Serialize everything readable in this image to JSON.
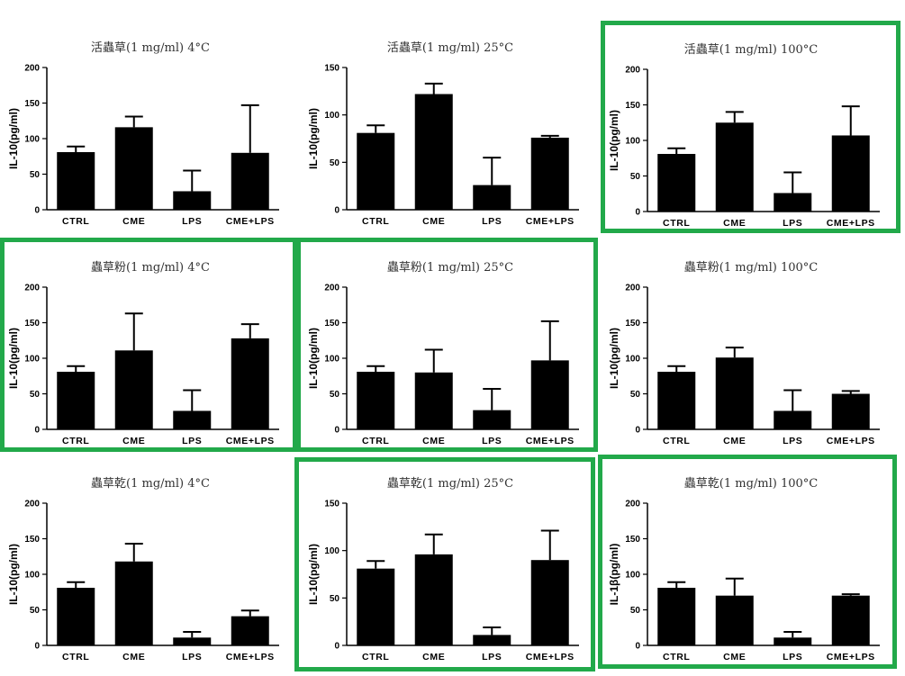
{
  "style": {
    "highlight_color": "#22a94a",
    "bar_color": "#000000"
  },
  "chart_data": [
    {
      "type": "bar",
      "title": "活蟲草(1 mg/ml) 4°C",
      "ylabel": "IL-10(pg/ml)",
      "ylim": [
        0,
        200
      ],
      "yticks": [
        0,
        50,
        100,
        150,
        200
      ],
      "highlighted": false,
      "categories": [
        "CTRL",
        "CME",
        "LPS",
        "CME+LPS"
      ],
      "values": [
        81,
        116,
        26,
        80
      ],
      "errors": [
        8,
        15,
        29,
        67
      ]
    },
    {
      "type": "bar",
      "title": "活蟲草(1 mg/ml) 25°C",
      "ylabel": "IL-10(pg/ml)",
      "ylim": [
        0,
        150
      ],
      "yticks": [
        0,
        50,
        100,
        150
      ],
      "highlighted": false,
      "categories": [
        "CTRL",
        "CME",
        "LPS",
        "CME+LPS"
      ],
      "values": [
        81,
        122,
        26,
        76
      ],
      "errors": [
        8,
        11,
        29,
        2
      ]
    },
    {
      "type": "bar",
      "title": "活蟲草(1 mg/ml) 100°C",
      "ylabel": "IL-10(pg/ml)",
      "ylim": [
        0,
        200
      ],
      "yticks": [
        0,
        50,
        100,
        150,
        200
      ],
      "highlighted": true,
      "categories": [
        "CTRL",
        "CME",
        "LPS",
        "CME+LPS"
      ],
      "values": [
        81,
        125,
        26,
        107
      ],
      "errors": [
        8,
        15,
        29,
        41
      ]
    },
    {
      "type": "bar",
      "title": "蟲草粉(1 mg/ml) 4°C",
      "ylabel": "IL-10(pg/ml)",
      "ylim": [
        0,
        200
      ],
      "yticks": [
        0,
        50,
        100,
        150,
        200
      ],
      "highlighted": true,
      "categories": [
        "CTRL",
        "CME",
        "LPS",
        "CME+LPS"
      ],
      "values": [
        81,
        111,
        26,
        128
      ],
      "errors": [
        8,
        52,
        29,
        20
      ]
    },
    {
      "type": "bar",
      "title": "蟲草粉(1 mg/ml) 25°C",
      "ylabel": "IL-10(pg/ml)",
      "ylim": [
        0,
        200
      ],
      "yticks": [
        0,
        50,
        100,
        150,
        200
      ],
      "highlighted": true,
      "categories": [
        "CTRL",
        "CME",
        "LPS",
        "CME+LPS"
      ],
      "values": [
        81,
        80,
        27,
        97
      ],
      "errors": [
        8,
        32,
        30,
        55
      ]
    },
    {
      "type": "bar",
      "title": "蟲草粉(1 mg/ml) 100°C",
      "ylabel": "IL-10(pg/ml)",
      "ylim": [
        0,
        200
      ],
      "yticks": [
        0,
        50,
        100,
        150,
        200
      ],
      "highlighted": false,
      "categories": [
        "CTRL",
        "CME",
        "LPS",
        "CME+LPS"
      ],
      "values": [
        81,
        101,
        26,
        50
      ],
      "errors": [
        8,
        14,
        29,
        4
      ]
    },
    {
      "type": "bar",
      "title": "蟲草乾(1 mg/ml) 4°C",
      "ylabel": "IL-10(pg/ml)",
      "ylim": [
        0,
        200
      ],
      "yticks": [
        0,
        50,
        100,
        150,
        200
      ],
      "highlighted": false,
      "categories": [
        "CTRL",
        "CME",
        "LPS",
        "CME+LPS"
      ],
      "values": [
        81,
        118,
        11,
        41
      ],
      "errors": [
        8,
        25,
        8,
        8
      ]
    },
    {
      "type": "bar",
      "title": "蟲草乾(1 mg/ml) 25°C",
      "ylabel": "IL-10(pg/ml)",
      "ylim": [
        0,
        150
      ],
      "yticks": [
        0,
        50,
        100,
        150
      ],
      "highlighted": true,
      "categories": [
        "CTRL",
        "CME",
        "LPS",
        "CME+LPS"
      ],
      "values": [
        81,
        96,
        11,
        90
      ],
      "errors": [
        8,
        21,
        8,
        31
      ]
    },
    {
      "type": "bar",
      "title": "蟲草乾(1 mg/ml) 100°C",
      "ylabel": "IL-1β(pg/ml)",
      "ylim": [
        0,
        200
      ],
      "yticks": [
        0,
        50,
        100,
        150,
        200
      ],
      "highlighted": true,
      "categories": [
        "CTRL",
        "CME",
        "LPS",
        "CME+LPS"
      ],
      "values": [
        81,
        70,
        11,
        70
      ],
      "errors": [
        8,
        24,
        8,
        2
      ]
    }
  ]
}
